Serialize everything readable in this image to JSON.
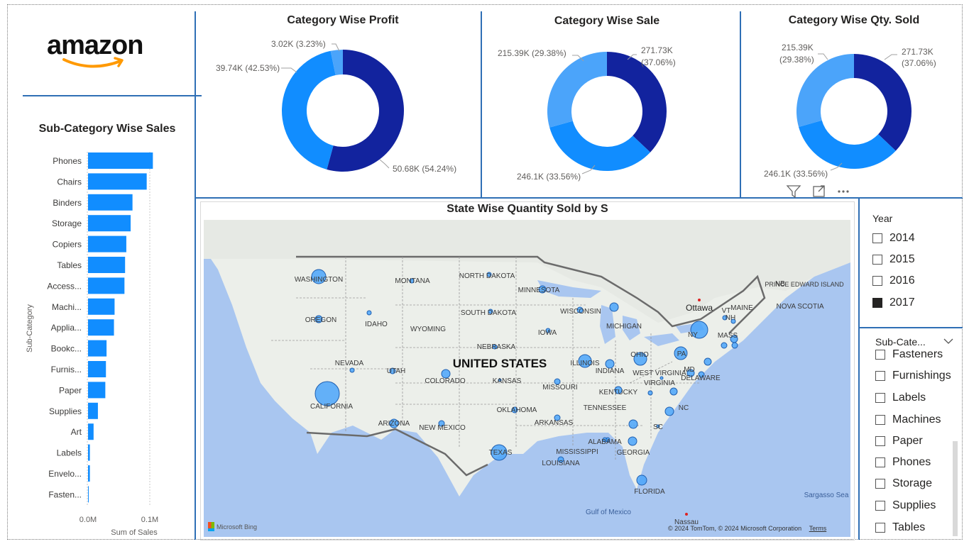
{
  "logo": {
    "text": "amazon"
  },
  "charts": {
    "profit": {
      "title": "Category Wise Profit",
      "labels": [
        "3.02K (3.23%)",
        "39.74K (42.53%)",
        "50.68K (54.24%)"
      ]
    },
    "sale": {
      "title": "Category Wise Sale",
      "labels": [
        "271.73K",
        "(37.06%)",
        "215.39K (29.38%)",
        "246.1K (33.56%)"
      ]
    },
    "qty": {
      "title": "Category Wise Qty. Sold",
      "labels": [
        "215.39K",
        "(29.38%)",
        "271.73K",
        "(37.06%)",
        "246.1K (33.56%)"
      ]
    },
    "subcat": {
      "title": "Sub-Category Wise Sales",
      "ylabel": "Sub-Category",
      "xlabel": "Sum of Sales",
      "ticks": [
        "0.0M",
        "0.1M"
      ]
    }
  },
  "chart_data": [
    {
      "type": "pie",
      "title": "Category Wise Profit",
      "values": [
        50.68,
        39.74,
        3.02
      ],
      "percents": [
        54.24,
        42.53,
        3.23
      ],
      "colors": [
        "#12239e",
        "#118dff",
        "#4ba4fa"
      ]
    },
    {
      "type": "pie",
      "title": "Category Wise Sale",
      "values": [
        271.73,
        246.1,
        215.39
      ],
      "percents": [
        37.06,
        33.56,
        29.38
      ],
      "colors": [
        "#12239e",
        "#118dff",
        "#4ba4fa"
      ]
    },
    {
      "type": "pie",
      "title": "Category Wise Qty. Sold",
      "values": [
        271.73,
        246.1,
        215.39
      ],
      "percents": [
        37.06,
        33.56,
        29.38
      ],
      "colors": [
        "#12239e",
        "#118dff",
        "#4ba4fa"
      ]
    },
    {
      "type": "bar",
      "orientation": "horizontal",
      "title": "Sub-Category Wise Sales",
      "xlabel": "Sum of Sales",
      "ylabel": "Sub-Category",
      "xlim": [
        0,
        0.11
      ],
      "categories": [
        "Phones",
        "Chairs",
        "Binders",
        "Storage",
        "Copiers",
        "Tables",
        "Access...",
        "Machi...",
        "Applia...",
        "Bookc...",
        "Furnis...",
        "Paper",
        "Supplies",
        "Art",
        "Labels",
        "Envelo...",
        "Fasten..."
      ],
      "values": [
        0.105,
        0.095,
        0.072,
        0.069,
        0.062,
        0.06,
        0.059,
        0.043,
        0.042,
        0.03,
        0.029,
        0.028,
        0.016,
        0.009,
        0.003,
        0.003,
        0.001
      ],
      "color": "#118dff"
    }
  ],
  "map": {
    "title": "State Wise Quantity Sold by S",
    "country_label": "UNITED STATES",
    "bing": "Microsoft Bing",
    "copyright": "© 2024 TomTom, © 2024 Microsoft Corporation",
    "terms": "Terms",
    "places": [
      "WASHINGTON",
      "OREGON",
      "CALIFORNIA",
      "NEVADA",
      "IDAHO",
      "MONTANA",
      "WYOMING",
      "UTAH",
      "ARIZONA",
      "COLORADO",
      "NEW MEXICO",
      "NORTH DAKOTA",
      "SOUTH DAKOTA",
      "NEBRASKA",
      "KANSAS",
      "OKLAHOMA",
      "TEXAS",
      "MINNESOTA",
      "IOWA",
      "MISSOURI",
      "ARKANSAS",
      "LOUISIANA",
      "WISCONSIN",
      "ILLINOIS",
      "MICHIGAN",
      "INDIANA",
      "OHIO",
      "KENTUCKY",
      "TENNESSEE",
      "MISSISSIPPI",
      "ALABAMA",
      "GEORGIA",
      "FLORIDA",
      "WEST VIRGINIA",
      "VIRGINIA",
      "NC",
      "SC",
      "PA",
      "NY",
      "MD",
      "DELAWARE",
      "VT",
      "NH",
      "MASS",
      "MAINE",
      "NB",
      "PRINCE EDWARD ISLAND",
      "NOVA SCOTIA",
      "Ottawa",
      "Gulf of Mexico",
      "Sargasso Sea",
      "Nassau"
    ]
  },
  "slicers": {
    "year": {
      "title": "Year",
      "items": [
        {
          "label": "2014",
          "checked": false
        },
        {
          "label": "2015",
          "checked": false
        },
        {
          "label": "2016",
          "checked": false
        },
        {
          "label": "2017",
          "checked": true
        }
      ]
    },
    "subcat": {
      "title": "Sub-Cate...",
      "items": [
        {
          "label": "Fasteners",
          "checked": false
        },
        {
          "label": "Furnishings",
          "checked": false
        },
        {
          "label": "Labels",
          "checked": false
        },
        {
          "label": "Machines",
          "checked": false
        },
        {
          "label": "Paper",
          "checked": false
        },
        {
          "label": "Phones",
          "checked": false
        },
        {
          "label": "Storage",
          "checked": false
        },
        {
          "label": "Supplies",
          "checked": false
        },
        {
          "label": "Tables",
          "checked": false
        }
      ]
    }
  },
  "icons": [
    "filter-icon",
    "focus-mode-icon",
    "more-options-icon",
    "chevron-down-icon"
  ]
}
